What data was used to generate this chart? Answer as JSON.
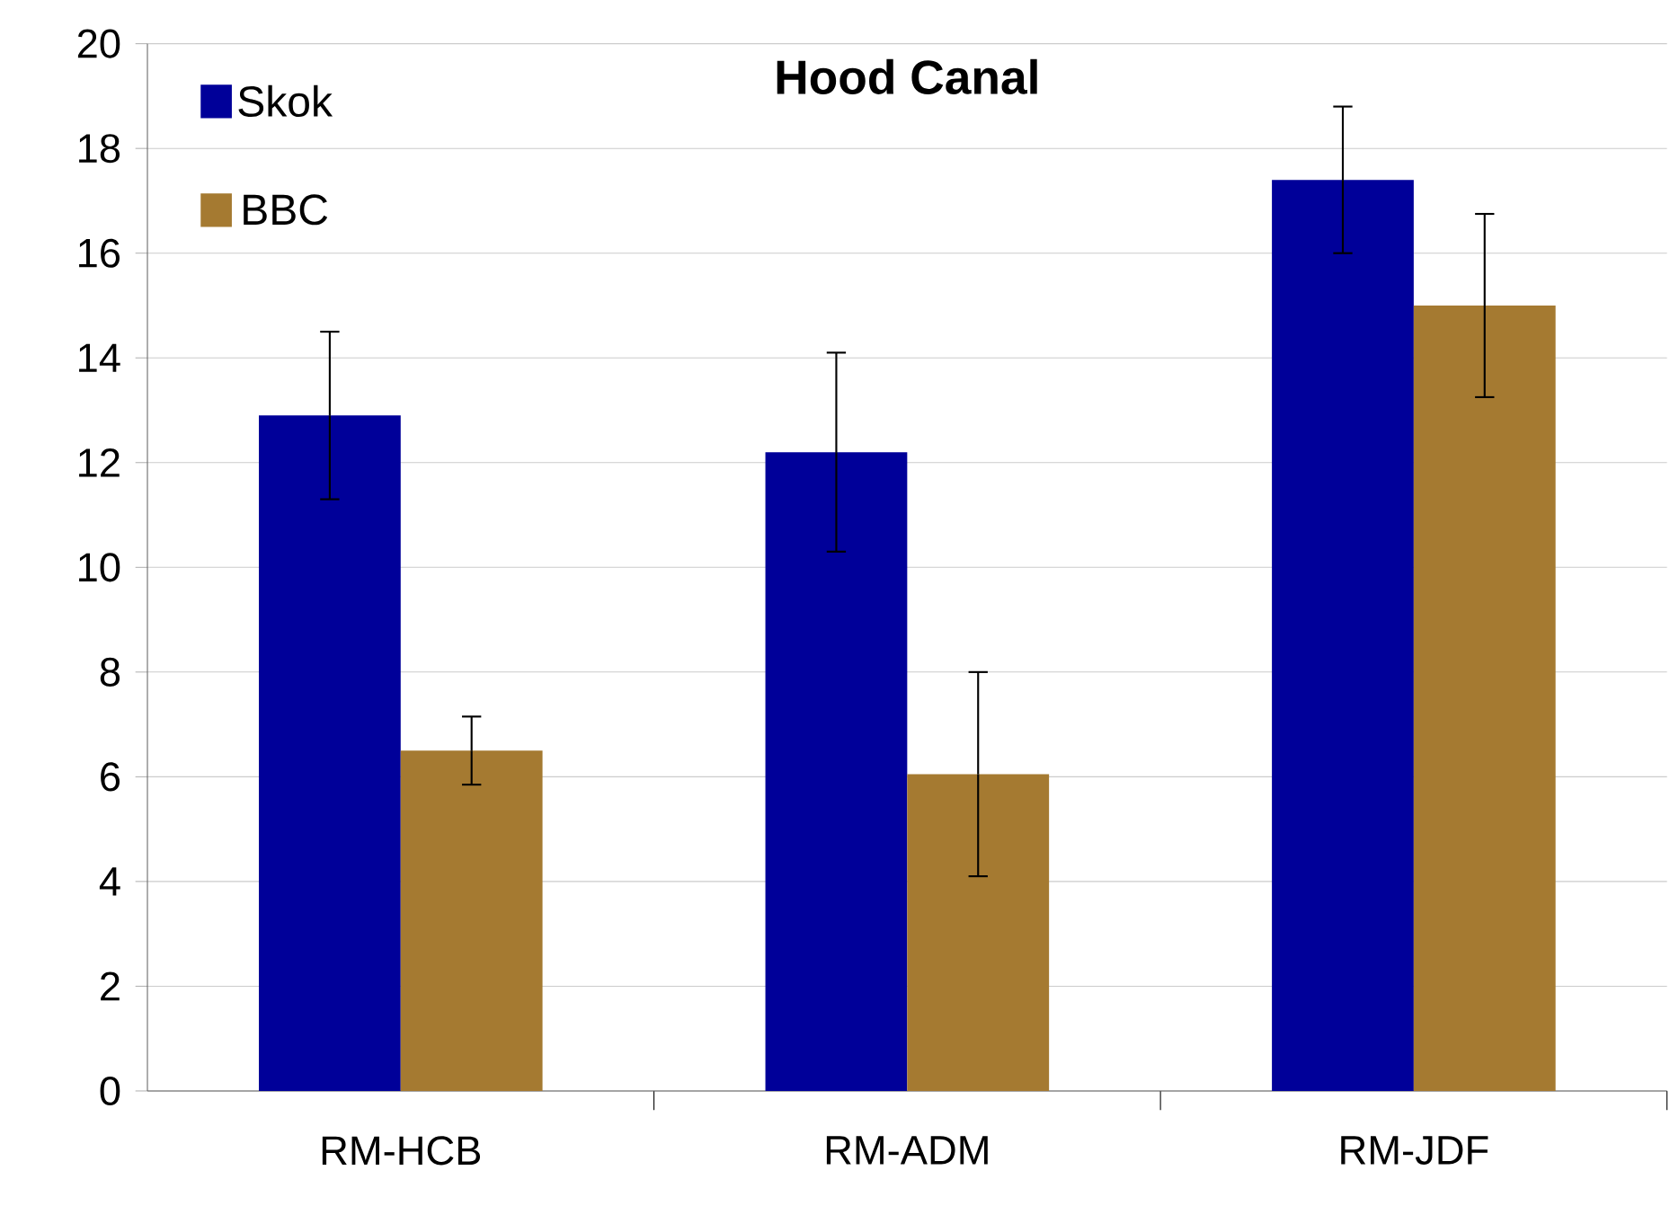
{
  "chart_data": {
    "type": "bar",
    "title": "**Hood Canal**",
    "categories": [
      "RM-HCB",
      "RM-ADM",
      "RM-JDF"
    ],
    "series": [
      {
        "name": "Skok",
        "color": "#000099",
        "values": [
          12.9,
          12.2,
          17.4
        ],
        "errors": [
          1.6,
          1.9,
          1.4
        ]
      },
      {
        "name": "BBC",
        "color": "#a57a31",
        "values": [
          6.5,
          6.05,
          15.0
        ],
        "errors": [
          0.65,
          1.95,
          1.75
        ]
      }
    ],
    "ylim": [
      0,
      20
    ],
    "yticks": [
      0,
      2,
      4,
      6,
      8,
      10,
      12,
      14,
      16,
      18,
      20
    ],
    "grid": "y",
    "legend": "top left"
  }
}
